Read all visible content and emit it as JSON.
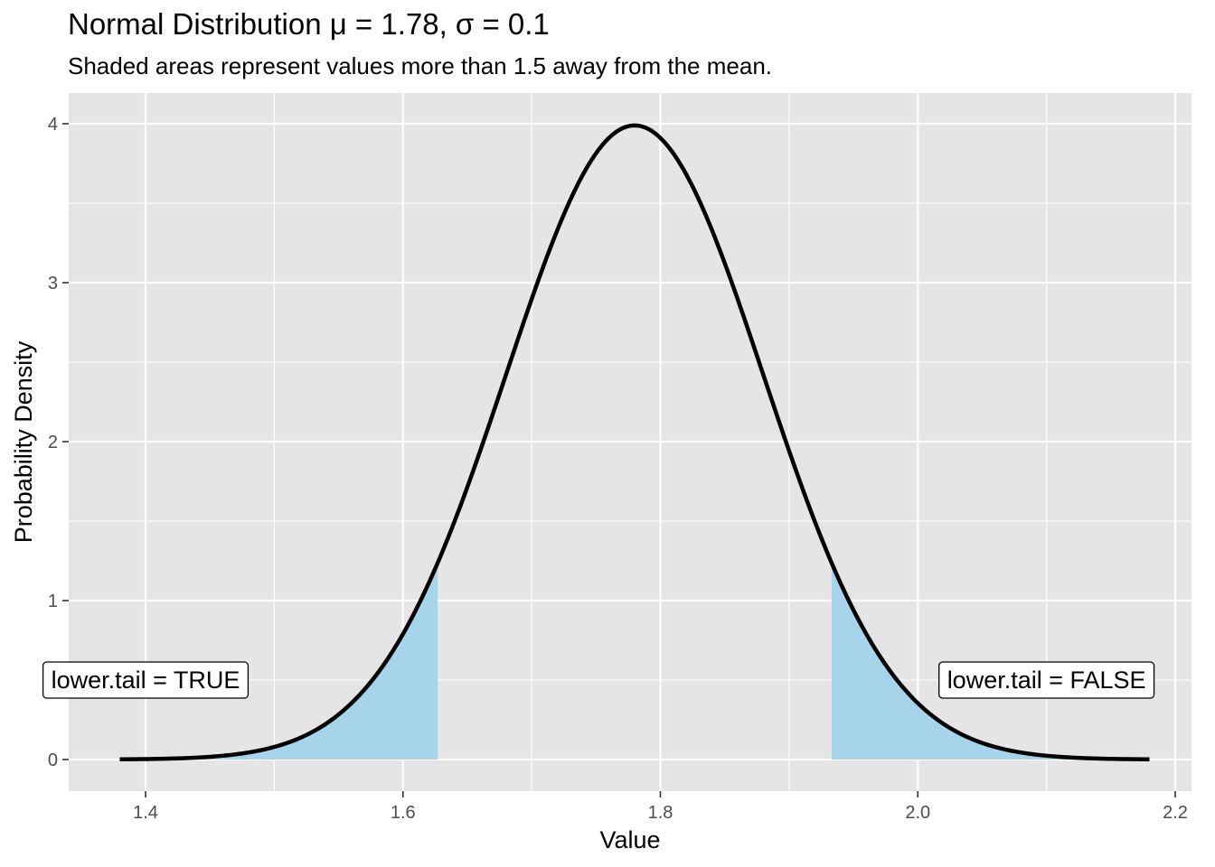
{
  "title": "Normal Distribution μ = 1.78, σ = 0.1",
  "subtitle": "Shaded areas represent values more than 1.5 away from the mean.",
  "colors": {
    "panel_background": "#e5e5e5",
    "grid": "#ffffff",
    "curve": "#000000",
    "shade": "#a6d4ea"
  },
  "chart_data": {
    "type": "area",
    "title": "Normal Distribution μ = 1.78, σ = 0.1",
    "subtitle": "Shaded areas represent values more than 1.5 away from the mean.",
    "xlabel": "Value",
    "ylabel": "Probability Density",
    "xlim": [
      1.37,
      2.2
    ],
    "ylim": [
      -0.2,
      4.2
    ],
    "x_ticks": [
      1.4,
      1.6,
      1.8,
      2.0,
      2.2
    ],
    "x_tick_labels": [
      "1.4",
      "1.6",
      "1.8",
      "2.0",
      "2.2"
    ],
    "y_ticks": [
      0,
      1,
      2,
      3,
      4
    ],
    "y_tick_labels": [
      "0",
      "1",
      "2",
      "3",
      "4"
    ],
    "grid": true,
    "distribution": {
      "mean": 1.78,
      "sd": 0.1
    },
    "curve_range": [
      1.38,
      2.18
    ],
    "shaded_regions": [
      {
        "from": 1.38,
        "to": 1.627
      },
      {
        "from": 1.933,
        "to": 2.18
      }
    ],
    "annotations": [
      {
        "text": "lower.tail = TRUE",
        "x": 1.4,
        "y": 0.5
      },
      {
        "text": "lower.tail = FALSE",
        "x": 2.1,
        "y": 0.5
      }
    ]
  }
}
